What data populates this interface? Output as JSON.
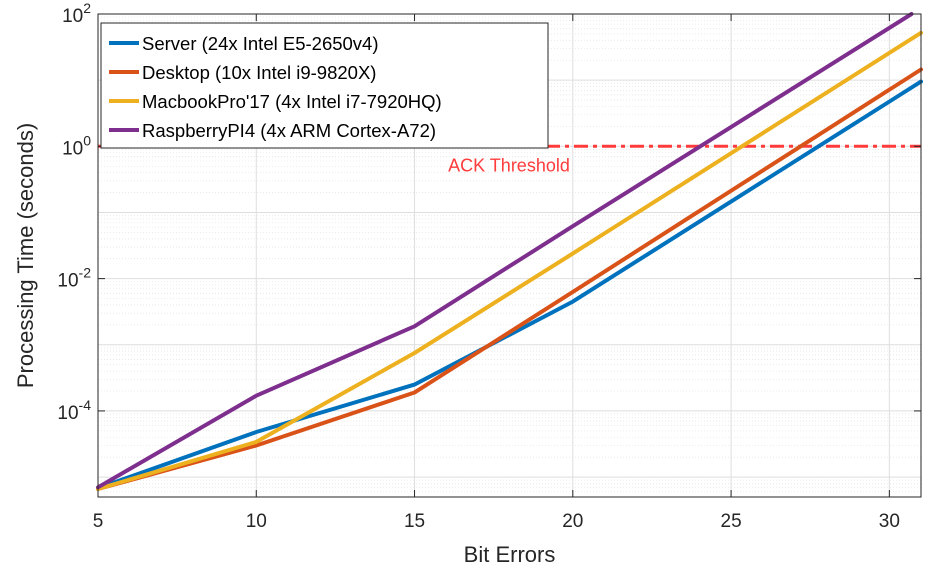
{
  "chart_data": {
    "type": "line",
    "title": "",
    "xlabel": "Bit Errors",
    "ylabel": "Processing Time (seconds)",
    "xlim": [
      5,
      31
    ],
    "ylim": [
      5e-06,
      100
    ],
    "yscale": "log",
    "grid": true,
    "minor_grid": true,
    "legend_position": "top-left",
    "x_ticks": [
      "5",
      "10",
      "15",
      "20",
      "25",
      "30"
    ],
    "y_ticks": [
      {
        "base": "10",
        "exp": "-4",
        "value": 0.0001
      },
      {
        "base": "10",
        "exp": "-2",
        "value": 0.01
      },
      {
        "base": "10",
        "exp": "0",
        "value": 1
      },
      {
        "base": "10",
        "exp": "2",
        "value": 100
      }
    ],
    "series": [
      {
        "name": "Server (24x Intel E5-2650v4)",
        "color": "#0072BD",
        "x": [
          5,
          10,
          15,
          20,
          31
        ],
        "y": [
          6.8e-06,
          4.8e-05,
          0.00025,
          0.0045,
          9.5
        ]
      },
      {
        "name": "Desktop (10x Intel i9-9820X)",
        "color": "#D95319",
        "x": [
          5,
          10,
          15,
          20,
          31
        ],
        "y": [
          6.6e-06,
          3e-05,
          0.00019,
          0.0063,
          14.5
        ]
      },
      {
        "name": "MacbookPro'17 (4x Intel i7-7920HQ)",
        "color": "#EDB120",
        "x": [
          5,
          10,
          15,
          20,
          31
        ],
        "y": [
          6.6e-06,
          3.4e-05,
          0.00075,
          0.024,
          52
        ]
      },
      {
        "name": "RaspberryPI4 (4x ARM Cortex-A72)",
        "color": "#7E2F8E",
        "x": [
          5,
          10,
          15,
          20,
          30.7
        ],
        "y": [
          7e-06,
          0.00017,
          0.0019,
          0.062,
          100
        ]
      }
    ],
    "annotations": [
      {
        "text": "ACK Threshold",
        "y": 1,
        "color": "#FF3B3B",
        "style": "dash-dot"
      }
    ]
  }
}
